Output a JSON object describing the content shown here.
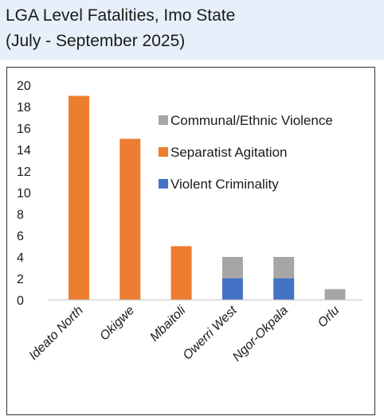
{
  "title": {
    "line1": "LGA Level Fatalities, Imo State",
    "line2": "(July - September 2025)"
  },
  "colors": {
    "title_band": "#e7f0fa",
    "communal": "#a6a6a6",
    "separatist": "#ed7d31",
    "criminality": "#4472c4"
  },
  "chart_data": {
    "type": "bar",
    "stacked": true,
    "categories": [
      "Ideato North",
      "Okigwe",
      "Mbaitoli",
      "Owerri West",
      "Ngor-Okpala",
      "Orlu"
    ],
    "series": [
      {
        "name": "Violent Criminality",
        "values": [
          0,
          0,
          0,
          2,
          2,
          0
        ],
        "color": "#4472c4"
      },
      {
        "name": "Separatist Agitation",
        "values": [
          19,
          15,
          5,
          0,
          0,
          0
        ],
        "color": "#ed7d31"
      },
      {
        "name": "Communal/Ethnic Violence",
        "values": [
          0,
          0,
          0,
          2,
          2,
          1
        ],
        "color": "#a6a6a6"
      }
    ],
    "yticks": [
      0,
      2,
      4,
      6,
      8,
      10,
      12,
      14,
      16,
      18,
      20
    ],
    "ylim": [
      0,
      20
    ],
    "legend_order": [
      "Communal/Ethnic Violence",
      "Separatist Agitation",
      "Violent Criminality"
    ],
    "legend_position": "top-right",
    "grid": false
  }
}
